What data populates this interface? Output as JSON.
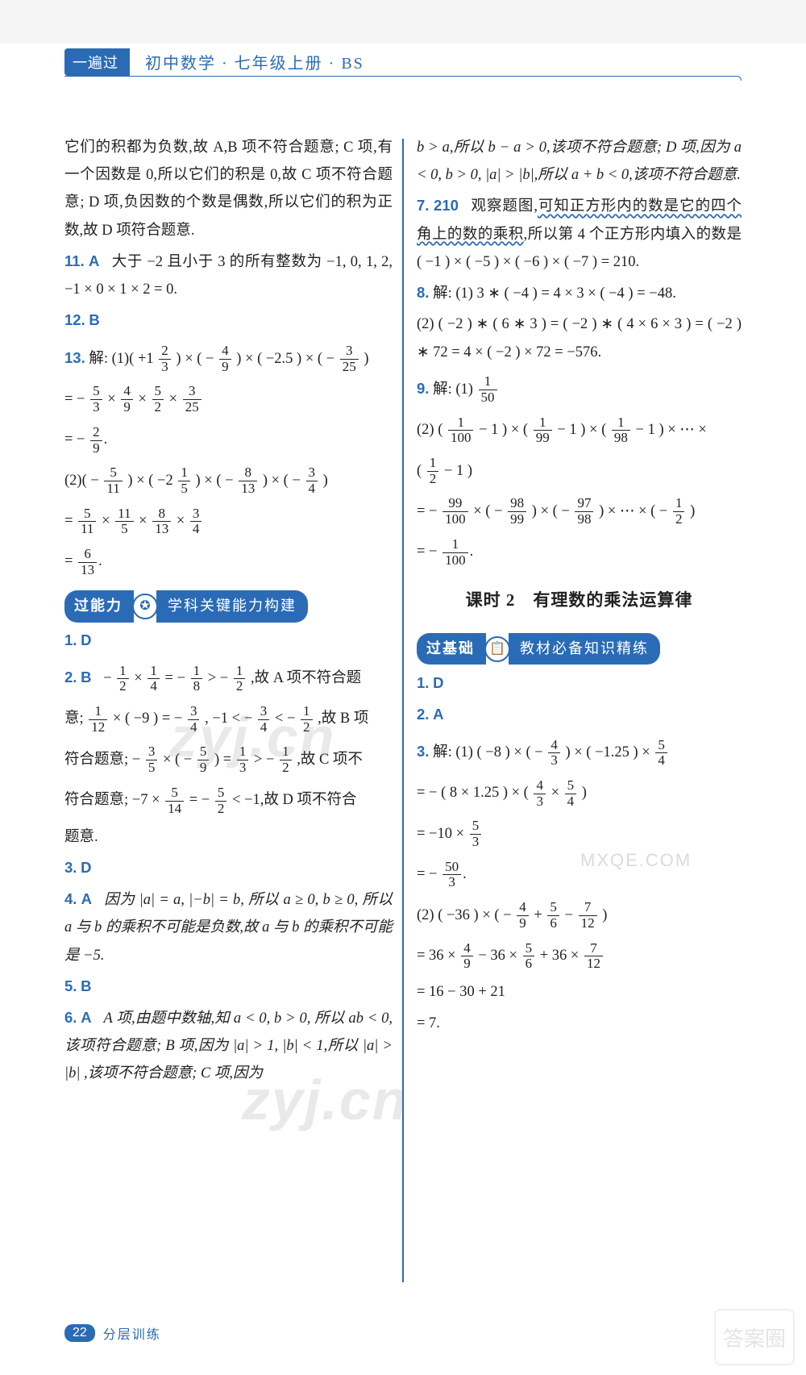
{
  "header": {
    "brand": "一遍过",
    "title": "初中数学 · 七年级上册 · BS"
  },
  "left_column": {
    "intro": "它们的积都为负数,故 A,B 项不符合题意; C 项,有一个因数是 0,所以它们的积是 0,故 C 项不符合题意; D 项,负因数的个数是偶数,所以它们的积为正数,故 D 项符合题意.",
    "q11": {
      "num": "11.",
      "ans": "A",
      "text": "大于 −2 且小于 3 的所有整数为 −1, 0, 1, 2, −1 × 0 × 1 × 2 = 0."
    },
    "q12": {
      "num": "12.",
      "ans": "B"
    },
    "q13": {
      "num": "13.",
      "label": "解:",
      "line1_pre": "(1)( +1",
      "line1_mid": " ) × ( − ",
      "line1_mid2": " ) × ( −2.5 ) × ( − ",
      "line1_end": " )",
      "line2_pre": "= − ",
      "times": " × ",
      "line3_pre": "= − ",
      "part2_pre": "(2)( − ",
      "part2_mid": " ) × ( −2 ",
      "part2_mid2": " ) × ( − ",
      "part2_mid3": " ) × ( − ",
      "part2_end": " )",
      "line4_pre": "= ",
      "line5_pre": "= "
    },
    "section1": {
      "left": "过能力",
      "right": "学科关键能力构建"
    },
    "a1": {
      "num": "1.",
      "ans": "D"
    },
    "a2": {
      "num": "2.",
      "ans": "B",
      "text_a": " − ",
      "text_b": " × ",
      "text_c": " = − ",
      "text_d": " > − ",
      "text_e": ",故 A 项不符合题",
      "text_f": "意; ",
      "text_g": " × ( −9 ) = − ",
      "text_h": ", −1 < − ",
      "text_i": " < − ",
      "text_j": ",故 B 项",
      "text_k": "符合题意; − ",
      "text_l": " × ( − ",
      "text_m": " ) = ",
      "text_n": " > − ",
      "text_o": ",故 C 项不",
      "text_p": "符合题意; −7 × ",
      "text_q": " = − ",
      "text_r": " < −1,故 D 项不符合",
      "text_s": "题意."
    },
    "a3": {
      "num": "3.",
      "ans": "D"
    },
    "a4": {
      "num": "4.",
      "ans": "A",
      "text": "因为 |a| = a, |−b| = b, 所以 a ≥ 0, b ≥ 0, 所以 a 与 b 的乘积不可能是负数,故 a 与 b 的乘积不可能是 −5."
    },
    "a5": {
      "num": "5.",
      "ans": "B"
    },
    "a6": {
      "num": "6.",
      "ans": "A",
      "text": "A 项,由题中数轴,知 a < 0, b > 0, 所以 ab < 0,该项符合题意; B 项,因为 |a| > 1, |b| < 1,所以 |a| > |b| ,该项不符合题意; C 项,因为"
    }
  },
  "right_column": {
    "top": "b > a,所以 b − a > 0,该项不符合题意; D 项,因为 a < 0, b > 0, |a| > |b|,所以 a + b < 0,该项不符合题意.",
    "q7": {
      "num": "7.",
      "ans": "210",
      "text_a": "观察题图,",
      "wavy": "可知正方形内的数是它的四个角上的数的乘积",
      "text_b": ",所以第 4 个正方形内填入的数是 ( −1 ) × ( −5 ) × ( −6 ) × ( −7 ) = 210."
    },
    "q8": {
      "num": "8.",
      "label": "解:",
      "l1": "(1) 3 ∗ ( −4 ) = 4 × 3 × ( −4 ) = −48.",
      "l2": "(2) ( −2 ) ∗ ( 6 ∗ 3 ) = ( −2 ) ∗ ( 4 × 6 × 3 ) = ( −2 ) ∗ 72 = 4 × ( −2 ) × 72 = −576."
    },
    "q9": {
      "num": "9.",
      "label": "解:",
      "p1": "(1) ",
      "p2a": "(2) ( ",
      "p2b": " − 1 ) × ( ",
      "p2c": " − 1 ) × ( ",
      "p2d": " − 1 ) × ⋯ ×",
      "p2e": "( ",
      "p2f": " − 1 )",
      "p3a": "= − ",
      "p3b": " × ( − ",
      "p3c": " ) × ( − ",
      "p3d": " ) × ⋯ × ( − ",
      "p3e": " )",
      "p4": "= − "
    },
    "lesson": "课时 2　有理数的乘法运算律",
    "section2": {
      "left": "过基础",
      "right": "教材必备知识精练"
    },
    "b1": {
      "num": "1.",
      "ans": "D"
    },
    "b2": {
      "num": "2.",
      "ans": "A"
    },
    "b3": {
      "num": "3.",
      "label": "解:",
      "l1a": "(1) ( −8 ) × ( − ",
      "l1b": " ) × ( −1.25 ) × ",
      "l2a": "= − ( 8 × 1.25 ) × ( ",
      "l2b": " × ",
      "l2c": " )",
      "l3a": "= −10 × ",
      "l4a": "= − ",
      "l5a": "(2) ( −36 ) × ( − ",
      "l5b": " + ",
      "l5c": " − ",
      "l5d": " )",
      "l6a": "= 36 × ",
      "l6b": " − 36 × ",
      "l6c": " + 36 × ",
      "l7": "= 16 − 30 + 21",
      "l8": "= 7."
    }
  },
  "footer": {
    "page": "22",
    "label": "分层训练"
  },
  "watermarks": {
    "w1": "zyj.cn",
    "w2": "zyj.cn",
    "w3": "MXQE.COM",
    "stamp": "答案圈"
  },
  "fractions": {
    "f_2_3": {
      "n": "2",
      "d": "3"
    },
    "f_4_9": {
      "n": "4",
      "d": "9"
    },
    "f_3_25": {
      "n": "3",
      "d": "25"
    },
    "f_5_3": {
      "n": "5",
      "d": "3"
    },
    "f_5_2": {
      "n": "5",
      "d": "2"
    },
    "f_2_9": {
      "n": "2",
      "d": "9"
    },
    "f_5_11": {
      "n": "5",
      "d": "11"
    },
    "f_1_5": {
      "n": "1",
      "d": "5"
    },
    "f_8_13": {
      "n": "8",
      "d": "13"
    },
    "f_3_4": {
      "n": "3",
      "d": "4"
    },
    "f_11_5": {
      "n": "11",
      "d": "5"
    },
    "f_6_13": {
      "n": "6",
      "d": "13"
    },
    "f_1_2": {
      "n": "1",
      "d": "2"
    },
    "f_1_4": {
      "n": "1",
      "d": "4"
    },
    "f_1_8": {
      "n": "1",
      "d": "8"
    },
    "f_1_12": {
      "n": "1",
      "d": "12"
    },
    "f_3_5": {
      "n": "3",
      "d": "5"
    },
    "f_5_9": {
      "n": "5",
      "d": "9"
    },
    "f_1_3": {
      "n": "1",
      "d": "3"
    },
    "f_5_14": {
      "n": "5",
      "d": "14"
    },
    "f_1_50": {
      "n": "1",
      "d": "50"
    },
    "f_1_100": {
      "n": "1",
      "d": "100"
    },
    "f_1_99": {
      "n": "1",
      "d": "99"
    },
    "f_1_98": {
      "n": "1",
      "d": "98"
    },
    "f_99_100": {
      "n": "99",
      "d": "100"
    },
    "f_98_99": {
      "n": "98",
      "d": "99"
    },
    "f_97_98": {
      "n": "97",
      "d": "98"
    },
    "f_4_3": {
      "n": "4",
      "d": "3"
    },
    "f_5_4": {
      "n": "5",
      "d": "4"
    },
    "f_50_3": {
      "n": "50",
      "d": "3"
    },
    "f_5_6": {
      "n": "5",
      "d": "6"
    },
    "f_7_12": {
      "n": "7",
      "d": "12"
    }
  },
  "colors": {
    "brand": "#2b6bb5",
    "text": "#222222",
    "bg": "#ffffff"
  }
}
